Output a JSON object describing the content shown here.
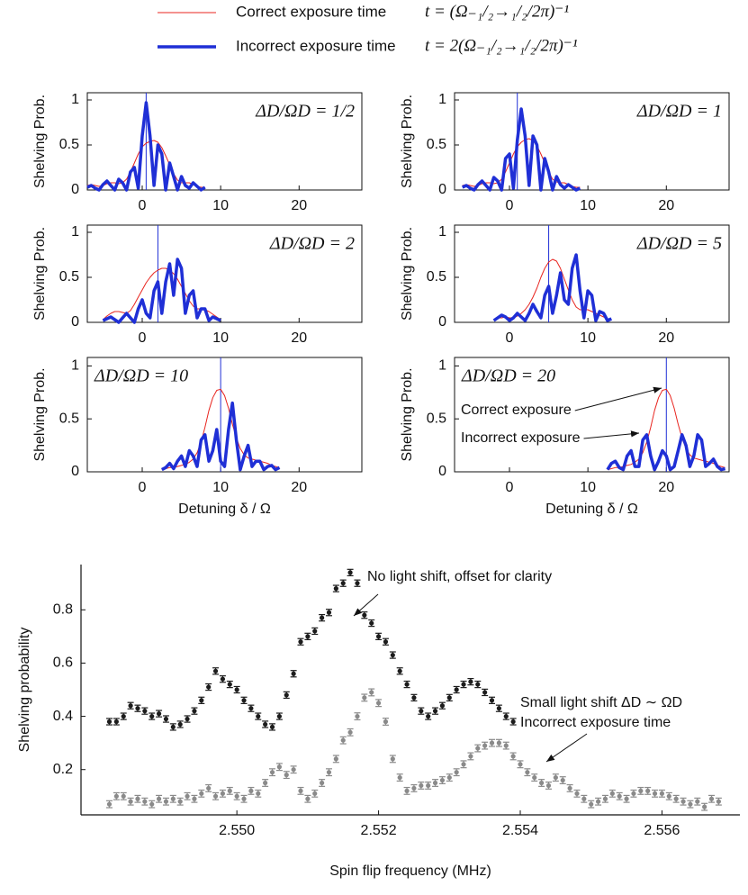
{
  "legend": {
    "entries": [
      {
        "name": "Correct exposure time",
        "equation": "t = (Ω₋₁/₂→₁/₂/2π)⁻¹",
        "color": "#e8251f",
        "width": 1
      },
      {
        "name": "Incorrect exposure time",
        "equation": "t = 2(Ω₋₁/₂→₁/₂/2π)⁻¹",
        "color": "#1f2fd6",
        "width": 3.5
      }
    ]
  },
  "chart_data": [
    {
      "type": "line",
      "label": "ΔD/ΩD = 1/2",
      "label_corner": "upper right",
      "ylabel": "Shelving Prob.",
      "xlim": [
        -7,
        28
      ],
      "xticks": [
        0,
        10,
        20
      ],
      "ylim": [
        0,
        1.08
      ],
      "yticks": [
        0,
        0.5,
        1
      ],
      "marker_x": 0.5,
      "marker_color": "#1f2fd6",
      "x": [
        -7,
        -6.5,
        -6,
        -5.5,
        -5,
        -4.5,
        -4,
        -3.5,
        -3,
        -2.5,
        -2,
        -1.5,
        -1,
        -0.5,
        0,
        0.5,
        1,
        1.5,
        2,
        2.5,
        3,
        3.5,
        4,
        4.5,
        5,
        5.5,
        6,
        6.5,
        7,
        7.5,
        8
      ],
      "series": [
        {
          "color": "#e8251f",
          "width": 1,
          "values": [
            0.05,
            0.06,
            0.05,
            0.04,
            0.05,
            0.07,
            0.08,
            0.08,
            0.07,
            0.08,
            0.12,
            0.2,
            0.3,
            0.4,
            0.48,
            0.52,
            0.54,
            0.55,
            0.53,
            0.47,
            0.38,
            0.28,
            0.18,
            0.11,
            0.08,
            0.08,
            0.08,
            0.06,
            0.04,
            0.03,
            0.03
          ]
        },
        {
          "color": "#1f2fd6",
          "width": 3.5,
          "values": [
            0.03,
            0.05,
            0.02,
            0,
            0.06,
            0.1,
            0.05,
            0,
            0.12,
            0.08,
            0,
            0.2,
            0.25,
            0.02,
            0.6,
            0.97,
            0.6,
            0.05,
            0.5,
            0.4,
            0,
            0.3,
            0.15,
            0,
            0.15,
            0.05,
            0.02,
            0.08,
            0.04,
            0,
            0.03
          ]
        }
      ]
    },
    {
      "type": "line",
      "label": "ΔD/ΩD = 1",
      "label_corner": "upper right",
      "ylabel": "Shelving Prob.",
      "xlim": [
        -7,
        28
      ],
      "xticks": [
        0,
        10,
        20
      ],
      "ylim": [
        0,
        1.08
      ],
      "yticks": [
        0,
        0.5,
        1
      ],
      "marker_x": 1,
      "marker_color": "#1f2fd6",
      "x": [
        -6,
        -5.5,
        -5,
        -4.5,
        -4,
        -3.5,
        -3,
        -2.5,
        -2,
        -1.5,
        -1,
        -0.5,
        0,
        0.5,
        1,
        1.5,
        2,
        2.5,
        3,
        3.5,
        4,
        4.5,
        5,
        5.5,
        6,
        6.5,
        7,
        7.5,
        8,
        8.5,
        9
      ],
      "series": [
        {
          "color": "#e8251f",
          "width": 1,
          "values": [
            0.05,
            0.06,
            0.05,
            0.04,
            0.05,
            0.07,
            0.08,
            0.08,
            0.07,
            0.08,
            0.12,
            0.2,
            0.3,
            0.4,
            0.48,
            0.53,
            0.56,
            0.57,
            0.55,
            0.49,
            0.4,
            0.3,
            0.2,
            0.12,
            0.09,
            0.08,
            0.08,
            0.06,
            0.04,
            0.03,
            0.03
          ]
        },
        {
          "color": "#1f2fd6",
          "width": 3.5,
          "values": [
            0.03,
            0.05,
            0.02,
            0,
            0.06,
            0.1,
            0.05,
            0,
            0.14,
            0.1,
            0,
            0.35,
            0.4,
            0.02,
            0.55,
            0.9,
            0.6,
            0.05,
            0.6,
            0.5,
            0,
            0.35,
            0.2,
            0,
            0.15,
            0.06,
            0.02,
            0.06,
            0.03,
            0,
            0.02
          ]
        }
      ]
    },
    {
      "type": "line",
      "label": "ΔD/ΩD = 2",
      "label_corner": "upper right",
      "ylabel": "Shelving Prob.",
      "xlim": [
        -7,
        28
      ],
      "xticks": [
        0,
        10,
        20
      ],
      "ylim": [
        0,
        1.08
      ],
      "yticks": [
        0,
        0.5,
        1
      ],
      "marker_x": 2,
      "marker_color": "#1f2fd6",
      "x": [
        -5,
        -4.5,
        -4,
        -3.5,
        -3,
        -2.5,
        -2,
        -1.5,
        -1,
        -0.5,
        0,
        0.5,
        1,
        1.5,
        2,
        2.5,
        3,
        3.5,
        4,
        4.5,
        5,
        5.5,
        6,
        6.5,
        7,
        7.5,
        8,
        8.5,
        9,
        9.5,
        10
      ],
      "series": [
        {
          "color": "#e8251f",
          "width": 1,
          "values": [
            0.03,
            0.07,
            0.1,
            0.12,
            0.12,
            0.11,
            0.1,
            0.13,
            0.2,
            0.28,
            0.36,
            0.44,
            0.5,
            0.55,
            0.58,
            0.6,
            0.6,
            0.58,
            0.54,
            0.48,
            0.4,
            0.32,
            0.24,
            0.18,
            0.15,
            0.15,
            0.14,
            0.12,
            0.09,
            0.06,
            0.03
          ]
        },
        {
          "color": "#1f2fd6",
          "width": 3.5,
          "values": [
            0.02,
            0.04,
            0.06,
            0.03,
            0,
            0.05,
            0.1,
            0.05,
            0,
            0.15,
            0.25,
            0.1,
            0.05,
            0.35,
            0.45,
            0.1,
            0.45,
            0.65,
            0.3,
            0.7,
            0.6,
            0.1,
            0.3,
            0.35,
            0.05,
            0.15,
            0.15,
            0.02,
            0.06,
            0.04,
            0.02
          ]
        }
      ]
    },
    {
      "type": "line",
      "label": "ΔD/ΩD = 5",
      "label_corner": "upper right",
      "ylabel": "Shelving Prob.",
      "xlim": [
        -7,
        28
      ],
      "xticks": [
        0,
        10,
        20
      ],
      "ylim": [
        0,
        1.08
      ],
      "yticks": [
        0,
        0.5,
        1
      ],
      "marker_x": 5,
      "marker_color": "#1f2fd6",
      "x": [
        -2,
        -1.5,
        -1,
        -0.5,
        0,
        0.5,
        1,
        1.5,
        2,
        2.5,
        3,
        3.5,
        4,
        4.5,
        5,
        5.5,
        6,
        6.5,
        7,
        7.5,
        8,
        8.5,
        9,
        9.5,
        10,
        10.5,
        11,
        11.5,
        12,
        12.5,
        13
      ],
      "series": [
        {
          "color": "#e8251f",
          "width": 1,
          "values": [
            0.03,
            0.05,
            0.05,
            0.06,
            0.05,
            0.05,
            0.07,
            0.1,
            0.14,
            0.2,
            0.28,
            0.38,
            0.5,
            0.6,
            0.67,
            0.7,
            0.68,
            0.6,
            0.48,
            0.36,
            0.25,
            0.17,
            0.14,
            0.14,
            0.14,
            0.12,
            0.1,
            0.08,
            0.06,
            0.04,
            0.03
          ]
        },
        {
          "color": "#1f2fd6",
          "width": 3.5,
          "values": [
            0.02,
            0.05,
            0.08,
            0.06,
            0.02,
            0.05,
            0.1,
            0.06,
            0.02,
            0.1,
            0.2,
            0.12,
            0.05,
            0.3,
            0.4,
            0.1,
            0.3,
            0.55,
            0.25,
            0.2,
            0.6,
            0.75,
            0.35,
            0.05,
            0.35,
            0.3,
            0.02,
            0.12,
            0.1,
            0.02,
            0.04
          ]
        }
      ]
    },
    {
      "type": "line",
      "label": "ΔD/ΩD = 10",
      "label_corner": "upper left",
      "ylabel": "Shelving Prob.",
      "xlabel": "Detuning δ / Ω",
      "xlim": [
        -7,
        28
      ],
      "xticks": [
        0,
        10,
        20
      ],
      "ylim": [
        0,
        1.08
      ],
      "yticks": [
        0,
        0.5,
        1
      ],
      "marker_x": 10,
      "marker_color": "#1f2fd6",
      "x": [
        2.5,
        3,
        3.5,
        4,
        4.5,
        5,
        5.5,
        6,
        6.5,
        7,
        7.5,
        8,
        8.5,
        9,
        9.5,
        10,
        10.5,
        11,
        11.5,
        12,
        12.5,
        13,
        13.5,
        14,
        14.5,
        15,
        15.5,
        16,
        16.5,
        17,
        17.5
      ],
      "series": [
        {
          "color": "#e8251f",
          "width": 1,
          "values": [
            0.02,
            0.03,
            0.04,
            0.04,
            0.05,
            0.06,
            0.07,
            0.09,
            0.12,
            0.18,
            0.28,
            0.42,
            0.58,
            0.7,
            0.77,
            0.78,
            0.72,
            0.6,
            0.45,
            0.32,
            0.22,
            0.16,
            0.13,
            0.12,
            0.11,
            0.1,
            0.09,
            0.08,
            0.06,
            0.05,
            0.04
          ]
        },
        {
          "color": "#1f2fd6",
          "width": 3.5,
          "values": [
            0.02,
            0.04,
            0.08,
            0.03,
            0.1,
            0.15,
            0.05,
            0.2,
            0.15,
            0.05,
            0.3,
            0.35,
            0.1,
            0.2,
            0.4,
            0.1,
            0.05,
            0.4,
            0.65,
            0.3,
            0.02,
            0.15,
            0.25,
            0.05,
            0.1,
            0.1,
            0.02,
            0.05,
            0.06,
            0.02,
            0.04
          ]
        }
      ]
    },
    {
      "type": "line",
      "label": "ΔD/ΩD = 20",
      "label_corner": "upper left",
      "ylabel": "Shelving Prob.",
      "xlabel": "Detuning δ / Ω",
      "xlim": [
        -7,
        28
      ],
      "xticks": [
        0,
        10,
        20
      ],
      "ylim": [
        0,
        1.08
      ],
      "yticks": [
        0,
        0.5,
        1
      ],
      "marker_x": 20,
      "marker_color": "#1f2fd6",
      "annotations": [
        "Correct exposure",
        "Incorrect exposure"
      ],
      "x": [
        12.5,
        13,
        13.5,
        14,
        14.5,
        15,
        15.5,
        16,
        16.5,
        17,
        17.5,
        18,
        18.5,
        19,
        19.5,
        20,
        20.5,
        21,
        21.5,
        22,
        22.5,
        23,
        23.5,
        24,
        24.5,
        25,
        25.5,
        26,
        26.5,
        27,
        27.5
      ],
      "series": [
        {
          "color": "#e8251f",
          "width": 1,
          "values": [
            0.02,
            0.03,
            0.04,
            0.04,
            0.05,
            0.06,
            0.07,
            0.09,
            0.12,
            0.18,
            0.28,
            0.42,
            0.58,
            0.7,
            0.77,
            0.78,
            0.72,
            0.6,
            0.45,
            0.32,
            0.22,
            0.16,
            0.13,
            0.12,
            0.11,
            0.1,
            0.09,
            0.08,
            0.06,
            0.05,
            0.04
          ]
        },
        {
          "color": "#1f2fd6",
          "width": 3.5,
          "values": [
            0.02,
            0.08,
            0.1,
            0.04,
            0.02,
            0.15,
            0.2,
            0.05,
            0.05,
            0.3,
            0.35,
            0.15,
            0.02,
            0.1,
            0.2,
            0.15,
            0.02,
            0.05,
            0.2,
            0.35,
            0.25,
            0.05,
            0.15,
            0.35,
            0.3,
            0.05,
            0.08,
            0.12,
            0.05,
            0.02,
            0.03
          ]
        }
      ]
    },
    {
      "type": "scatter",
      "ylabel": "Shelving probability",
      "xlabel": "Spin flip frequency (MHz)",
      "xlim": [
        2.5478,
        2.5571
      ],
      "xticks": [
        {
          "value": 2.55,
          "label": "2.550"
        },
        {
          "value": 2.552,
          "label": "2.552"
        },
        {
          "value": 2.554,
          "label": "2.554"
        },
        {
          "value": 2.556,
          "label": "2.556"
        }
      ],
      "ylim": [
        0.03,
        0.97
      ],
      "yticks": [
        0.2,
        0.4,
        0.6,
        0.8
      ],
      "annotations": [
        "No light shift, offset for clarity",
        "Small light shift ΔD ∼ ΩD",
        "Incorrect exposure time"
      ],
      "x": [
        2.5482,
        2.5483,
        2.5484,
        2.5485,
        2.5486,
        2.5487,
        2.5488,
        2.5489,
        2.549,
        2.5491,
        2.5492,
        2.5493,
        2.5494,
        2.5495,
        2.5496,
        2.5497,
        2.5498,
        2.5499,
        2.55,
        2.5501,
        2.5502,
        2.5503,
        2.5504,
        2.5505,
        2.5506,
        2.5507,
        2.5508,
        2.5509,
        2.551,
        2.5511,
        2.5512,
        2.5513,
        2.5514,
        2.5515,
        2.5516,
        2.5517,
        2.5518,
        2.5519,
        2.552,
        2.5521,
        2.5522,
        2.5523,
        2.5524,
        2.5525,
        2.5526,
        2.5527,
        2.5528,
        2.5529,
        2.553,
        2.5531,
        2.5532,
        2.5533,
        2.5534,
        2.5535,
        2.5536,
        2.5537,
        2.5538,
        2.5539,
        2.554,
        2.5541,
        2.5542,
        2.5543,
        2.5544,
        2.5545,
        2.5546,
        2.5547,
        2.5548,
        2.5549,
        2.555,
        2.5551,
        2.5552,
        2.5553,
        2.5554,
        2.5555,
        2.5556,
        2.5557,
        2.5558,
        2.5559,
        2.556,
        2.5561,
        2.5562,
        2.5563,
        2.5564,
        2.5565,
        2.5566,
        2.5567,
        2.5568
      ],
      "series": [
        {
          "color": "#1c1c1c",
          "error": 0.012,
          "values": [
            0.38,
            0.38,
            0.4,
            0.44,
            0.43,
            0.42,
            0.4,
            0.41,
            0.39,
            0.36,
            0.37,
            0.39,
            0.42,
            0.46,
            0.51,
            0.57,
            0.54,
            0.52,
            0.5,
            0.46,
            0.43,
            0.4,
            0.37,
            0.36,
            0.4,
            0.48,
            0.56,
            0.68,
            0.7,
            0.72,
            0.77,
            0.79,
            0.88,
            0.9,
            0.94,
            0.9,
            0.78,
            0.75,
            0.7,
            0.68,
            0.63,
            0.57,
            0.52,
            0.47,
            0.42,
            0.4,
            0.42,
            0.44,
            0.47,
            0.5,
            0.52,
            0.53,
            0.52,
            0.49,
            0.46,
            0.43,
            0.4,
            0.38,
            null,
            null,
            null,
            null,
            null,
            null,
            null,
            null,
            null,
            null,
            null,
            null,
            null,
            null,
            null,
            null,
            null,
            null,
            null,
            null,
            null,
            null,
            null,
            null,
            null,
            null,
            null,
            null,
            null
          ]
        },
        {
          "color": "#8a8a8a",
          "error": 0.013,
          "values": [
            0.07,
            0.1,
            0.1,
            0.08,
            0.09,
            0.08,
            0.07,
            0.09,
            0.08,
            0.09,
            0.08,
            0.1,
            0.09,
            0.11,
            0.13,
            0.1,
            0.11,
            0.12,
            0.1,
            0.09,
            0.12,
            0.11,
            0.15,
            0.19,
            0.21,
            0.18,
            0.2,
            0.12,
            0.09,
            0.11,
            0.15,
            0.19,
            0.24,
            0.31,
            0.34,
            0.4,
            0.47,
            0.49,
            0.45,
            0.38,
            0.24,
            0.17,
            0.12,
            0.13,
            0.14,
            0.14,
            0.15,
            0.16,
            0.17,
            0.19,
            0.22,
            0.25,
            0.28,
            0.29,
            0.3,
            0.3,
            0.29,
            0.25,
            0.22,
            0.19,
            0.17,
            0.15,
            0.14,
            0.17,
            0.16,
            0.13,
            0.11,
            0.09,
            0.07,
            0.08,
            0.09,
            0.11,
            0.1,
            0.09,
            0.11,
            0.12,
            0.12,
            0.11,
            0.11,
            0.1,
            0.09,
            0.08,
            0.07,
            0.08,
            0.06,
            0.09,
            0.08
          ]
        }
      ]
    }
  ]
}
